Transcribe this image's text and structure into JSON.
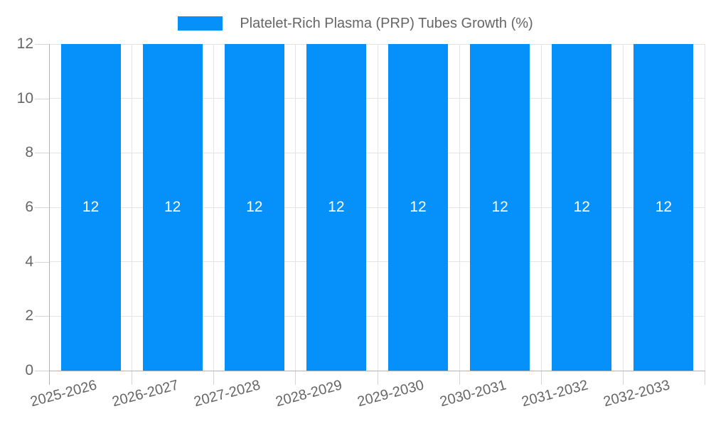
{
  "legend": {
    "label": "Platelet-Rich Plasma (PRP) Tubes Growth (%)"
  },
  "chart_data": {
    "type": "bar",
    "title": "Platelet-Rich Plasma (PRP) Tubes Growth (%)",
    "categories": [
      "2025-2026",
      "2026-2027",
      "2027-2028",
      "2028-2029",
      "2029-2030",
      "2030-2031",
      "2031-2032",
      "2032-2033"
    ],
    "values": [
      12,
      12,
      12,
      12,
      12,
      12,
      12,
      12
    ],
    "data_labels": [
      "12",
      "12",
      "12",
      "12",
      "12",
      "12",
      "12",
      "12"
    ],
    "xlabel": "",
    "ylabel": "",
    "ylim": [
      0,
      12
    ],
    "yticks": [
      0,
      2,
      4,
      6,
      8,
      10,
      12
    ],
    "ytick_labels": [
      "0",
      "2",
      "4",
      "6",
      "8",
      "10",
      "12"
    ],
    "grid": true,
    "legend_position": "top",
    "colors": {
      "bar": "#0590FA",
      "data_label": "#ffffff",
      "tick_text": "#666666",
      "gridline": "#e4e4e4",
      "axis_border": "#b4b4b4",
      "background": "#ffffff"
    }
  }
}
